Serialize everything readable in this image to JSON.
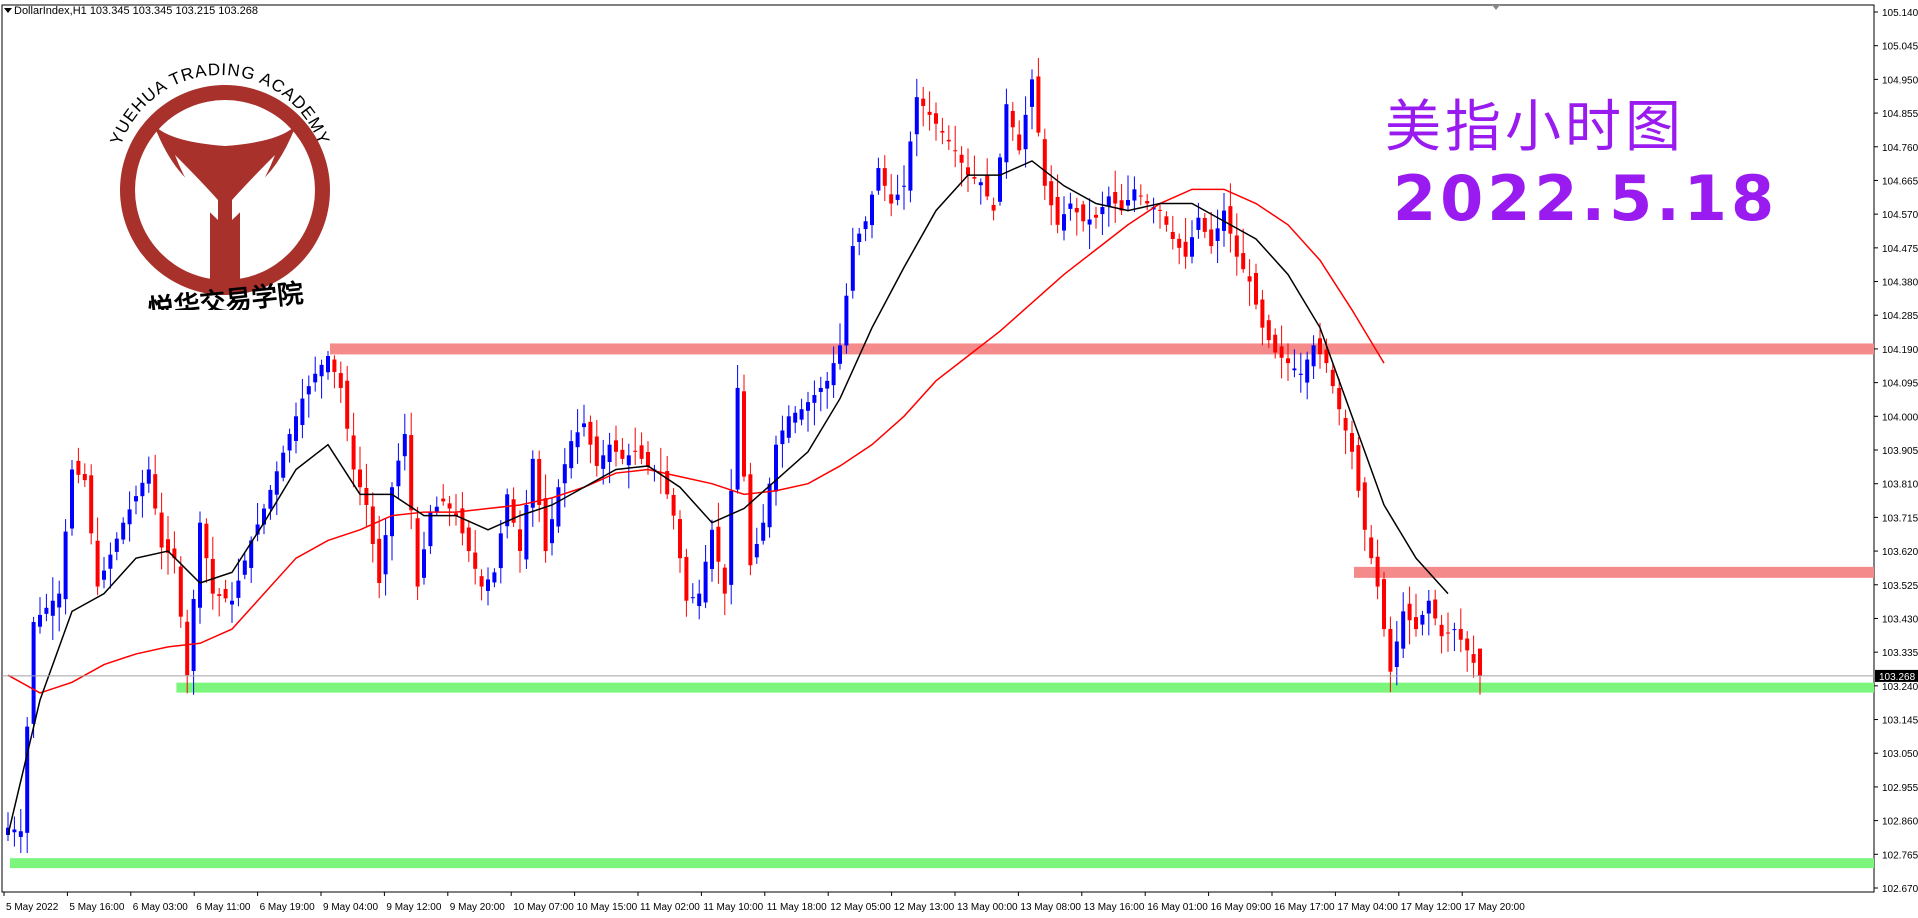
{
  "header": {
    "text": "DollarIndex,H1  103.345 103.345 103.215 103.268"
  },
  "title_cn": "美指小时图",
  "title_date": "2022.5.18",
  "logo": {
    "arc_text": "YUEHUA TRADING ACADEMY",
    "cn_text": "悦华交易学院",
    "color": "#a8312b"
  },
  "colors": {
    "bull": "#0000ff",
    "bear": "#ff0000",
    "ma_fast": "#000000",
    "ma_slow": "#ff0000",
    "resistance": "#f58a8a",
    "support": "#7cf57c",
    "title": "#9a1bf0"
  },
  "chart_data": {
    "type": "candlestick",
    "symbol": "DollarIndex",
    "timeframe": "H1",
    "ohlc_current": {
      "open": 103.345,
      "high": 103.345,
      "low": 103.215,
      "close": 103.268
    },
    "current_price_label": "103.268",
    "ylim": [
      102.67,
      105.14
    ],
    "y_ticks": [
      "105.140",
      "105.045",
      "104.950",
      "104.855",
      "104.760",
      "104.665",
      "104.570",
      "104.475",
      "104.380",
      "104.285",
      "104.190",
      "104.095",
      "104.000",
      "103.905",
      "103.810",
      "103.715",
      "103.620",
      "103.525",
      "103.430",
      "103.335",
      "103.240",
      "103.145",
      "103.050",
      "102.955",
      "102.860",
      "102.765",
      "102.670"
    ],
    "x_ticks": [
      "5 May 2022",
      "5 May 16:00",
      "6 May 03:00",
      "6 May 11:00",
      "6 May 19:00",
      "9 May 04:00",
      "9 May 12:00",
      "9 May 20:00",
      "10 May 07:00",
      "10 May 15:00",
      "11 May 02:00",
      "11 May 10:00",
      "11 May 18:00",
      "12 May 05:00",
      "12 May 13:00",
      "13 May 00:00",
      "13 May 08:00",
      "13 May 16:00",
      "16 May 01:00",
      "16 May 09:00",
      "16 May 17:00",
      "17 May 04:00",
      "17 May 12:00",
      "17 May 20:00"
    ],
    "levels": [
      {
        "name": "resistance",
        "price": 104.19,
        "bar_start": 50,
        "bar_end": 301
      },
      {
        "name": "resistance",
        "price": 103.56,
        "bar_start": 210,
        "bar_end": 301
      },
      {
        "name": "support",
        "price": 103.235,
        "bar_start": 26,
        "bar_end": 301
      },
      {
        "name": "support",
        "price": 102.74,
        "bar_start": 0,
        "bar_end": 301
      }
    ],
    "path_points": [
      [
        0,
        102.84
      ],
      [
        2,
        102.83
      ],
      [
        4,
        103.42
      ],
      [
        8,
        103.5
      ],
      [
        10,
        103.85
      ],
      [
        12,
        103.82
      ],
      [
        14,
        103.52
      ],
      [
        18,
        103.7
      ],
      [
        22,
        103.85
      ],
      [
        24,
        103.63
      ],
      [
        26,
        103.6
      ],
      [
        28,
        103.27
      ],
      [
        30,
        103.7
      ],
      [
        32,
        103.5
      ],
      [
        35,
        103.48
      ],
      [
        38,
        103.65
      ],
      [
        40,
        103.74
      ],
      [
        44,
        103.95
      ],
      [
        46,
        104.05
      ],
      [
        48,
        104.12
      ],
      [
        50,
        104.17
      ],
      [
        52,
        104.08
      ],
      [
        54,
        103.85
      ],
      [
        56,
        103.75
      ],
      [
        58,
        103.53
      ],
      [
        60,
        103.8
      ],
      [
        62,
        103.95
      ],
      [
        64,
        103.52
      ],
      [
        66,
        103.73
      ],
      [
        68,
        103.76
      ],
      [
        70,
        103.72
      ],
      [
        72,
        103.62
      ],
      [
        74,
        103.52
      ],
      [
        76,
        103.56
      ],
      [
        78,
        103.78
      ],
      [
        80,
        103.62
      ],
      [
        82,
        103.88
      ],
      [
        84,
        103.62
      ],
      [
        86,
        103.8
      ],
      [
        88,
        103.93
      ],
      [
        90,
        103.98
      ],
      [
        92,
        103.86
      ],
      [
        94,
        103.92
      ],
      [
        96,
        103.88
      ],
      [
        98,
        103.9
      ],
      [
        100,
        103.86
      ],
      [
        102,
        103.84
      ],
      [
        104,
        103.72
      ],
      [
        106,
        103.48
      ],
      [
        108,
        103.5
      ],
      [
        110,
        103.68
      ],
      [
        112,
        103.5
      ],
      [
        114,
        104.08
      ],
      [
        116,
        103.58
      ],
      [
        118,
        103.7
      ],
      [
        120,
        103.92
      ],
      [
        122,
        104.0
      ],
      [
        124,
        104.02
      ],
      [
        126,
        104.06
      ],
      [
        128,
        104.1
      ],
      [
        130,
        104.2
      ],
      [
        132,
        104.48
      ],
      [
        134,
        104.55
      ],
      [
        136,
        104.7
      ],
      [
        138,
        104.6
      ],
      [
        140,
        104.65
      ],
      [
        142,
        104.9
      ],
      [
        144,
        104.85
      ],
      [
        146,
        104.8
      ],
      [
        148,
        104.75
      ],
      [
        150,
        104.68
      ],
      [
        152,
        104.66
      ],
      [
        154,
        104.58
      ],
      [
        156,
        104.88
      ],
      [
        158,
        104.75
      ],
      [
        160,
        104.95
      ],
      [
        162,
        104.65
      ],
      [
        164,
        104.54
      ],
      [
        166,
        104.6
      ],
      [
        168,
        104.55
      ],
      [
        170,
        104.56
      ],
      [
        172,
        104.62
      ],
      [
        174,
        104.58
      ],
      [
        176,
        104.64
      ],
      [
        178,
        104.6
      ],
      [
        180,
        104.58
      ],
      [
        182,
        104.5
      ],
      [
        184,
        104.45
      ],
      [
        186,
        104.56
      ],
      [
        188,
        104.48
      ],
      [
        190,
        104.58
      ],
      [
        192,
        104.45
      ],
      [
        194,
        104.38
      ],
      [
        196,
        104.25
      ],
      [
        198,
        104.18
      ],
      [
        200,
        104.15
      ],
      [
        202,
        104.12
      ],
      [
        204,
        104.2
      ],
      [
        206,
        104.15
      ],
      [
        208,
        104.02
      ],
      [
        210,
        103.9
      ],
      [
        212,
        103.68
      ],
      [
        214,
        103.52
      ],
      [
        216,
        103.28
      ],
      [
        218,
        103.45
      ],
      [
        220,
        103.4
      ],
      [
        222,
        103.48
      ],
      [
        224,
        103.38
      ],
      [
        226,
        103.4
      ],
      [
        228,
        103.34
      ],
      [
        230,
        103.27
      ]
    ],
    "ma_fast": [
      [
        0,
        102.82
      ],
      [
        5,
        103.2
      ],
      [
        10,
        103.45
      ],
      [
        15,
        103.5
      ],
      [
        20,
        103.6
      ],
      [
        25,
        103.62
      ],
      [
        30,
        103.53
      ],
      [
        35,
        103.56
      ],
      [
        40,
        103.7
      ],
      [
        45,
        103.85
      ],
      [
        50,
        103.92
      ],
      [
        55,
        103.78
      ],
      [
        60,
        103.78
      ],
      [
        65,
        103.72
      ],
      [
        70,
        103.72
      ],
      [
        75,
        103.68
      ],
      [
        80,
        103.72
      ],
      [
        85,
        103.75
      ],
      [
        90,
        103.8
      ],
      [
        95,
        103.85
      ],
      [
        100,
        103.86
      ],
      [
        105,
        103.8
      ],
      [
        110,
        103.7
      ],
      [
        115,
        103.74
      ],
      [
        120,
        103.82
      ],
      [
        125,
        103.9
      ],
      [
        130,
        104.05
      ],
      [
        135,
        104.25
      ],
      [
        140,
        104.42
      ],
      [
        145,
        104.58
      ],
      [
        150,
        104.68
      ],
      [
        155,
        104.68
      ],
      [
        160,
        104.72
      ],
      [
        165,
        104.65
      ],
      [
        170,
        104.6
      ],
      [
        175,
        104.58
      ],
      [
        180,
        104.6
      ],
      [
        185,
        104.6
      ],
      [
        190,
        104.55
      ],
      [
        195,
        104.5
      ],
      [
        200,
        104.4
      ],
      [
        205,
        104.25
      ],
      [
        210,
        104.0
      ],
      [
        215,
        103.75
      ],
      [
        220,
        103.6
      ],
      [
        225,
        103.5
      ]
    ],
    "ma_slow": [
      [
        0,
        103.27
      ],
      [
        5,
        103.22
      ],
      [
        10,
        103.25
      ],
      [
        15,
        103.3
      ],
      [
        20,
        103.33
      ],
      [
        25,
        103.35
      ],
      [
        30,
        103.36
      ],
      [
        35,
        103.4
      ],
      [
        40,
        103.5
      ],
      [
        45,
        103.6
      ],
      [
        50,
        103.65
      ],
      [
        55,
        103.68
      ],
      [
        60,
        103.72
      ],
      [
        65,
        103.73
      ],
      [
        70,
        103.73
      ],
      [
        75,
        103.74
      ],
      [
        80,
        103.75
      ],
      [
        85,
        103.77
      ],
      [
        90,
        103.8
      ],
      [
        95,
        103.84
      ],
      [
        100,
        103.85
      ],
      [
        105,
        103.83
      ],
      [
        110,
        103.81
      ],
      [
        115,
        103.78
      ],
      [
        120,
        103.79
      ],
      [
        125,
        103.81
      ],
      [
        130,
        103.86
      ],
      [
        135,
        103.92
      ],
      [
        140,
        104.0
      ],
      [
        145,
        104.1
      ],
      [
        150,
        104.17
      ],
      [
        155,
        104.24
      ],
      [
        160,
        104.32
      ],
      [
        165,
        104.4
      ],
      [
        170,
        104.47
      ],
      [
        175,
        104.54
      ],
      [
        180,
        104.6
      ],
      [
        185,
        104.64
      ],
      [
        190,
        104.64
      ],
      [
        195,
        104.6
      ],
      [
        200,
        104.54
      ],
      [
        205,
        104.44
      ],
      [
        210,
        104.3
      ],
      [
        215,
        104.15
      ]
    ]
  }
}
